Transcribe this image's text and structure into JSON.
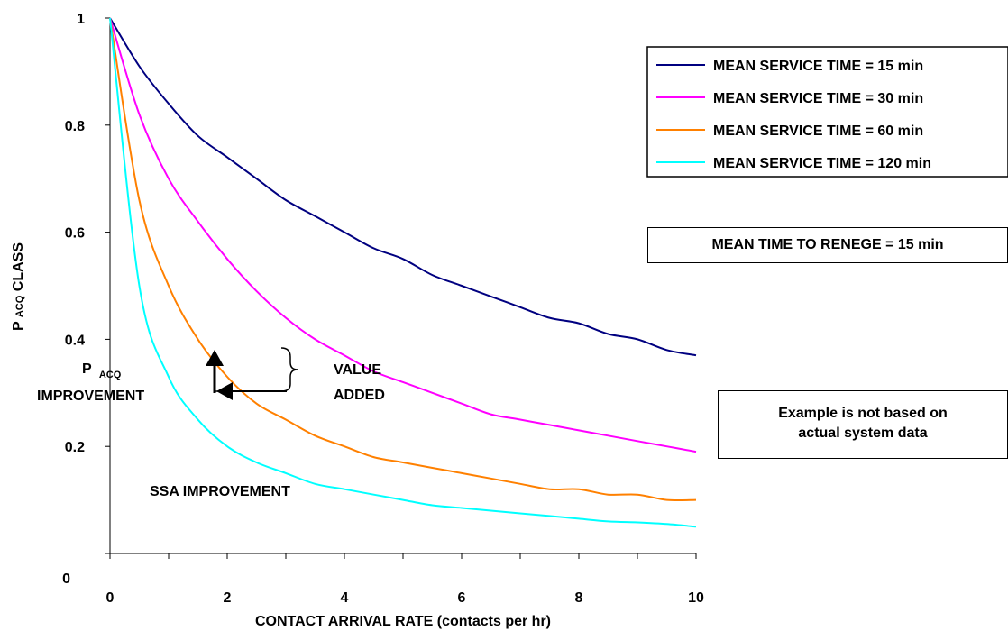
{
  "chart_data": {
    "type": "line",
    "xlabel": "CONTACT ARRIVAL RATE (contacts per hr)",
    "ylabel_main": "P",
    "ylabel_sub": "ACQ",
    "ylabel_rest": "CLASS",
    "xlim": [
      0,
      10
    ],
    "ylim": [
      0,
      1
    ],
    "x_ticks": [
      "0",
      "2",
      "4",
      "6",
      "8",
      "10"
    ],
    "y_ticks": [
      "0",
      "0.2",
      "0.4",
      "0.6",
      "0.8",
      "1"
    ],
    "grid": false,
    "legend_position": "top-right",
    "x": [
      0,
      0.5,
      1,
      1.5,
      2,
      2.5,
      3,
      3.5,
      4,
      4.5,
      5,
      5.5,
      6,
      6.5,
      7,
      7.5,
      8,
      8.5,
      9,
      9.5,
      10
    ],
    "series": [
      {
        "name": "MEAN SERVICE TIME = 15 min",
        "color": "#000080",
        "values": [
          1.0,
          0.91,
          0.84,
          0.78,
          0.74,
          0.7,
          0.66,
          0.63,
          0.6,
          0.57,
          0.55,
          0.52,
          0.5,
          0.48,
          0.46,
          0.44,
          0.43,
          0.41,
          0.4,
          0.38,
          0.37
        ]
      },
      {
        "name": "MEAN SERVICE TIME = 30 min",
        "color": "#ff00ff",
        "values": [
          1.0,
          0.82,
          0.7,
          0.62,
          0.55,
          0.49,
          0.44,
          0.4,
          0.37,
          0.34,
          0.32,
          0.3,
          0.28,
          0.26,
          0.25,
          0.24,
          0.23,
          0.22,
          0.21,
          0.2,
          0.19
        ]
      },
      {
        "name": "MEAN SERVICE TIME = 60 min",
        "color": "#ff8000",
        "values": [
          1.0,
          0.66,
          0.5,
          0.4,
          0.33,
          0.28,
          0.25,
          0.22,
          0.2,
          0.18,
          0.17,
          0.16,
          0.15,
          0.14,
          0.13,
          0.12,
          0.12,
          0.11,
          0.11,
          0.1,
          0.1
        ]
      },
      {
        "name": "MEAN SERVICE TIME = 120 min",
        "color": "#00ffff",
        "values": [
          1.0,
          0.5,
          0.33,
          0.25,
          0.2,
          0.17,
          0.15,
          0.13,
          0.12,
          0.11,
          0.1,
          0.09,
          0.085,
          0.08,
          0.075,
          0.07,
          0.065,
          0.06,
          0.058,
          0.055,
          0.05
        ]
      }
    ]
  },
  "annotations": {
    "value_added_line1": "VALUE",
    "value_added_line2": "ADDED",
    "pacq_main": "P",
    "pacq_sub": "ACQ",
    "pacq_line2": "IMPROVEMENT",
    "ssa": "SSA IMPROVEMENT"
  },
  "boxes": {
    "renege": "MEAN TIME TO RENEGE = 15 min",
    "note_line1": "Example is not based on",
    "note_line2": "actual system data"
  }
}
